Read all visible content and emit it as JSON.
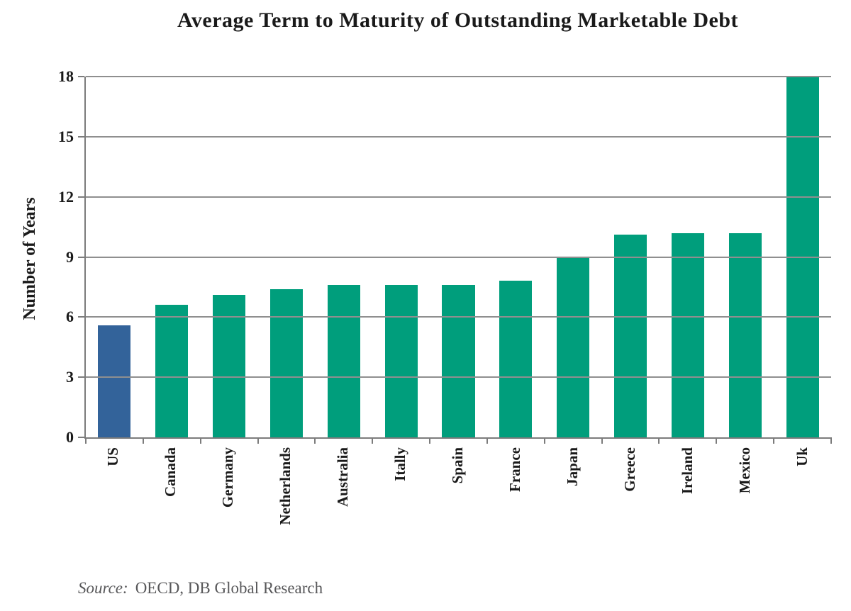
{
  "chart_data": {
    "type": "bar",
    "title": "Average Term to Maturity of Outstanding Marketable Debt",
    "xlabel": "",
    "ylabel": "Number of Years",
    "ylim": [
      0,
      18
    ],
    "yticks": [
      0,
      3,
      6,
      9,
      12,
      15,
      18
    ],
    "grid": true,
    "gridlines_over_bars": true,
    "legend": "none",
    "categories": [
      "US",
      "Canada",
      "Germany",
      "Netherlands",
      "Australia",
      "Itally",
      "Spain",
      "France",
      "Japan",
      "Greece",
      "Ireland",
      "Mexico",
      "Uk"
    ],
    "values": [
      5.6,
      6.6,
      7.1,
      7.4,
      7.6,
      7.6,
      7.6,
      7.8,
      9,
      10.1,
      10.2,
      10.2,
      18
    ],
    "highlight_category": "US",
    "colors": {
      "highlight_bar": "#33639a",
      "default_bar": "#009e7c",
      "gridline": "#8f8f8f",
      "axis": "#7c7c7c",
      "text": "#1a1a1a",
      "source_text": "#58585a"
    }
  },
  "source": {
    "label": "Source:",
    "text": "OECD, DB Global Research"
  }
}
